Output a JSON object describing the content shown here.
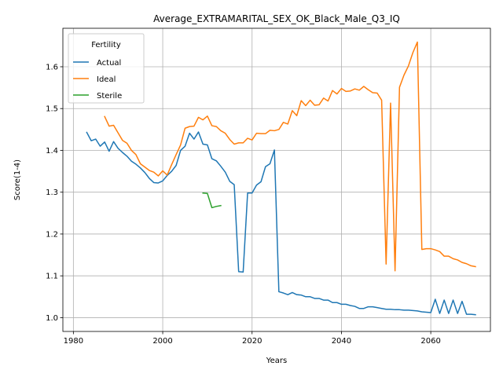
{
  "chart_data": {
    "type": "line",
    "title": "Average_EXTRAMARITAL_SEX_OK_Black_Male_Q3_IQ",
    "xlabel": "Years",
    "ylabel": "Score(1-4)",
    "xlim": [
      1977.65,
      2073.35
    ],
    "ylim": [
      0.967,
      1.692
    ],
    "xticks": [
      1980,
      2000,
      2020,
      2040,
      2060
    ],
    "yticks": [
      1.0,
      1.1,
      1.2,
      1.3,
      1.4,
      1.5,
      1.6
    ],
    "grid": true,
    "legend": {
      "title": "Fertility",
      "position": "top-left"
    },
    "series": [
      {
        "name": "Actual",
        "color": "#1f77b4",
        "x": [
          1983,
          1984,
          1985,
          1986,
          1987,
          1988,
          1989,
          1990,
          1991,
          1992,
          1993,
          1994,
          1995,
          1996,
          1997,
          1998,
          1999,
          2000,
          2001,
          2002,
          2003,
          2004,
          2005,
          2006,
          2007,
          2008,
          2009,
          2010,
          2011,
          2012,
          2013,
          2014,
          2015,
          2016,
          2017,
          2018,
          2019,
          2020,
          2021,
          2022,
          2023,
          2024,
          2025,
          2026,
          2027,
          2028,
          2029,
          2030,
          2031,
          2032,
          2033,
          2034,
          2035,
          2036,
          2037,
          2038,
          2039,
          2040,
          2041,
          2042,
          2043,
          2044,
          2045,
          2046,
          2047,
          2048,
          2049,
          2050,
          2051,
          2052,
          2053,
          2054,
          2055,
          2056,
          2057,
          2058,
          2059,
          2060,
          2061,
          2062,
          2063,
          2064,
          2065,
          2066,
          2067,
          2068,
          2069,
          2070
        ],
        "y": [
          1.443,
          1.423,
          1.427,
          1.41,
          1.42,
          1.398,
          1.421,
          1.405,
          1.395,
          1.386,
          1.374,
          1.367,
          1.358,
          1.347,
          1.333,
          1.323,
          1.322,
          1.327,
          1.34,
          1.35,
          1.364,
          1.4,
          1.41,
          1.441,
          1.427,
          1.444,
          1.415,
          1.413,
          1.38,
          1.375,
          1.362,
          1.348,
          1.326,
          1.318,
          1.11,
          1.109,
          1.298,
          1.298,
          1.317,
          1.325,
          1.361,
          1.368,
          1.401,
          1.062,
          1.059,
          1.055,
          1.06,
          1.055,
          1.054,
          1.05,
          1.05,
          1.046,
          1.046,
          1.042,
          1.042,
          1.036,
          1.036,
          1.032,
          1.032,
          1.029,
          1.027,
          1.022,
          1.022,
          1.026,
          1.026,
          1.024,
          1.022,
          1.02,
          1.02,
          1.019,
          1.019,
          1.018,
          1.018,
          1.017,
          1.016,
          1.014,
          1.013,
          1.012,
          1.044,
          1.01,
          1.042,
          1.01,
          1.042,
          1.01,
          1.039,
          1.008,
          1.008,
          1.007
        ]
      },
      {
        "name": "Ideal",
        "color": "#ff7f0e",
        "x": [
          1987,
          1988,
          1989,
          1990,
          1991,
          1992,
          1993,
          1994,
          1995,
          1996,
          1997,
          1998,
          1999,
          2000,
          2001,
          2002,
          2003,
          2004,
          2005,
          2006,
          2007,
          2008,
          2009,
          2010,
          2011,
          2012,
          2013,
          2014,
          2015,
          2016,
          2017,
          2018,
          2019,
          2020,
          2021,
          2022,
          2023,
          2024,
          2025,
          2026,
          2027,
          2028,
          2029,
          2030,
          2031,
          2032,
          2033,
          2034,
          2035,
          2036,
          2037,
          2038,
          2039,
          2040,
          2041,
          2042,
          2043,
          2044,
          2045,
          2046,
          2047,
          2048,
          2049,
          2050,
          2051,
          2052,
          2053,
          2054,
          2055,
          2056,
          2057,
          2058,
          2059,
          2060,
          2061,
          2062,
          2063,
          2064,
          2065,
          2066,
          2067,
          2068,
          2069,
          2070
        ],
        "y": [
          1.481,
          1.458,
          1.46,
          1.442,
          1.424,
          1.417,
          1.4,
          1.39,
          1.368,
          1.36,
          1.352,
          1.348,
          1.339,
          1.351,
          1.341,
          1.366,
          1.39,
          1.413,
          1.453,
          1.457,
          1.458,
          1.479,
          1.473,
          1.482,
          1.459,
          1.457,
          1.447,
          1.441,
          1.426,
          1.415,
          1.418,
          1.418,
          1.429,
          1.425,
          1.441,
          1.44,
          1.44,
          1.448,
          1.447,
          1.45,
          1.467,
          1.463,
          1.495,
          1.483,
          1.519,
          1.507,
          1.52,
          1.508,
          1.509,
          1.525,
          1.518,
          1.543,
          1.535,
          1.548,
          1.541,
          1.542,
          1.547,
          1.544,
          1.553,
          1.545,
          1.538,
          1.537,
          1.52,
          1.128,
          1.513,
          1.112,
          1.551,
          1.58,
          1.602,
          1.634,
          1.659,
          1.163,
          1.165,
          1.165,
          1.162,
          1.158,
          1.147,
          1.147,
          1.141,
          1.138,
          1.132,
          1.129,
          1.124,
          1.122
        ]
      },
      {
        "name": "Sterile",
        "color": "#2ca02c",
        "x": [
          2009,
          2010,
          2011,
          2012,
          2013
        ],
        "y": [
          1.298,
          1.297,
          1.263,
          1.266,
          1.268
        ]
      }
    ]
  }
}
